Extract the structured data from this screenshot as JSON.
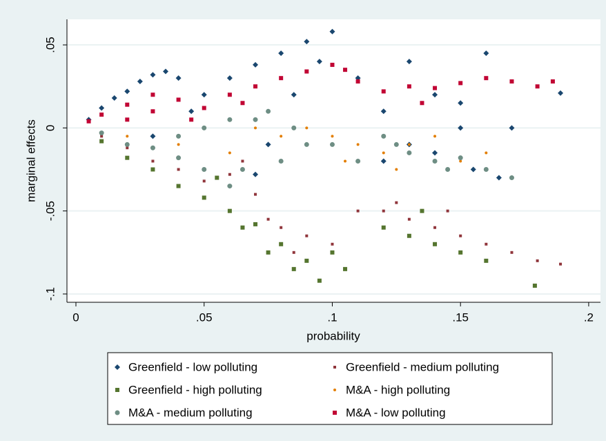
{
  "chart_data": {
    "type": "scatter",
    "x_label": "probability",
    "y_label": "marginal effects",
    "xlim": [
      -0.0035,
      0.2046
    ],
    "ylim": [
      -0.105,
      0.0654
    ],
    "xticks": [
      0,
      {
        "value": 0.05,
        "label": ".05"
      },
      {
        "value": 0.1,
        "label": ".1"
      },
      {
        "value": 0.15,
        "label": ".15"
      },
      {
        "value": 0.2,
        "label": ".2"
      }
    ],
    "yticks": [
      {
        "value": 0.05,
        "label": ".05"
      },
      0,
      {
        "value": -0.05,
        "label": "-.05"
      },
      {
        "value": -0.1,
        "label": "-.1"
      }
    ],
    "grid": true,
    "series": [
      {
        "name": "Greenfield - low polluting",
        "color": "#1a476f",
        "marker": "diamond",
        "x": [
          0.005,
          0.01,
          0.015,
          0.02,
          0.025,
          0.03,
          0.035,
          0.04,
          0.03,
          0.045,
          0.05,
          0.06,
          0.07,
          0.08,
          0.09,
          0.1,
          0.095,
          0.085,
          0.075,
          0.07,
          0.11,
          0.12,
          0.13,
          0.14,
          0.15,
          0.16,
          0.13,
          0.14,
          0.15,
          0.17,
          0.189,
          0.155,
          0.165,
          0.12
        ],
        "values": [
          0.005,
          0.012,
          0.018,
          0.022,
          0.028,
          0.032,
          0.034,
          0.03,
          -0.005,
          0.01,
          0.02,
          0.03,
          0.038,
          0.045,
          0.052,
          0.058,
          0.04,
          0.02,
          -0.01,
          -0.028,
          0.03,
          0.01,
          0.04,
          0.02,
          0.0,
          0.045,
          -0.01,
          -0.015,
          0.015,
          0.0,
          0.021,
          -0.025,
          -0.03,
          -0.02
        ]
      },
      {
        "name": "Greenfield - medium polluting",
        "color": "#90353b",
        "marker": "small-square",
        "x": [
          0.01,
          0.02,
          0.03,
          0.04,
          0.05,
          0.06,
          0.07,
          0.08,
          0.09,
          0.1,
          0.11,
          0.12,
          0.13,
          0.14,
          0.15,
          0.16,
          0.17,
          0.18,
          0.189,
          0.065,
          0.075,
          0.085,
          0.125,
          0.145
        ],
        "values": [
          -0.005,
          -0.012,
          -0.02,
          -0.025,
          -0.032,
          -0.028,
          -0.04,
          -0.06,
          -0.065,
          -0.07,
          -0.05,
          -0.05,
          -0.055,
          -0.06,
          -0.065,
          -0.07,
          -0.075,
          -0.08,
          -0.082,
          -0.02,
          -0.055,
          -0.075,
          -0.045,
          -0.05
        ]
      },
      {
        "name": "Greenfield - high polluting",
        "color": "#55752f",
        "marker": "square",
        "x": [
          0.01,
          0.02,
          0.03,
          0.04,
          0.05,
          0.06,
          0.07,
          0.08,
          0.09,
          0.095,
          0.1,
          0.105,
          0.12,
          0.13,
          0.14,
          0.15,
          0.16,
          0.179,
          0.055,
          0.065,
          0.075,
          0.085,
          0.135
        ],
        "values": [
          -0.008,
          -0.018,
          -0.025,
          -0.035,
          -0.042,
          -0.05,
          -0.058,
          -0.07,
          -0.08,
          -0.092,
          -0.075,
          -0.085,
          -0.06,
          -0.065,
          -0.07,
          -0.075,
          -0.08,
          -0.095,
          -0.03,
          -0.06,
          -0.075,
          -0.085,
          -0.05
        ]
      },
      {
        "name": "M&A - high polluting",
        "color": "#e37e00",
        "marker": "dot",
        "x": [
          0.02,
          0.04,
          0.06,
          0.07,
          0.08,
          0.09,
          0.1,
          0.11,
          0.12,
          0.13,
          0.14,
          0.15,
          0.16,
          0.105,
          0.125
        ],
        "values": [
          -0.005,
          -0.01,
          -0.015,
          0.0,
          -0.005,
          0.0,
          -0.005,
          -0.01,
          -0.015,
          -0.01,
          -0.005,
          -0.02,
          -0.015,
          -0.02,
          -0.025
        ]
      },
      {
        "name": "M&A - medium polluting",
        "color": "#6e8e84",
        "marker": "circle",
        "x": [
          0.01,
          0.02,
          0.03,
          0.04,
          0.05,
          0.06,
          0.07,
          0.075,
          0.08,
          0.06,
          0.05,
          0.04,
          0.085,
          0.09,
          0.1,
          0.11,
          0.12,
          0.13,
          0.14,
          0.15,
          0.16,
          0.17,
          0.125,
          0.145,
          0.065
        ],
        "values": [
          -0.003,
          -0.01,
          -0.012,
          -0.005,
          0.0,
          0.005,
          0.005,
          0.01,
          -0.02,
          -0.035,
          -0.025,
          -0.018,
          0.0,
          -0.01,
          -0.01,
          -0.02,
          -0.005,
          -0.015,
          -0.02,
          -0.018,
          -0.025,
          -0.03,
          -0.01,
          -0.025,
          -0.025
        ]
      },
      {
        "name": "M&A - low polluting",
        "color": "#c10534",
        "marker": "square",
        "x": [
          0.005,
          0.01,
          0.02,
          0.03,
          0.04,
          0.03,
          0.02,
          0.05,
          0.06,
          0.07,
          0.08,
          0.09,
          0.1,
          0.105,
          0.11,
          0.12,
          0.13,
          0.14,
          0.15,
          0.16,
          0.17,
          0.18,
          0.186,
          0.045,
          0.065,
          0.135
        ],
        "values": [
          0.004,
          0.008,
          0.014,
          0.02,
          0.017,
          0.01,
          0.005,
          0.012,
          0.02,
          0.025,
          0.03,
          0.034,
          0.038,
          0.035,
          0.028,
          0.022,
          0.025,
          0.024,
          0.027,
          0.03,
          0.028,
          0.025,
          0.028,
          0.005,
          0.015,
          0.015
        ]
      }
    ]
  }
}
